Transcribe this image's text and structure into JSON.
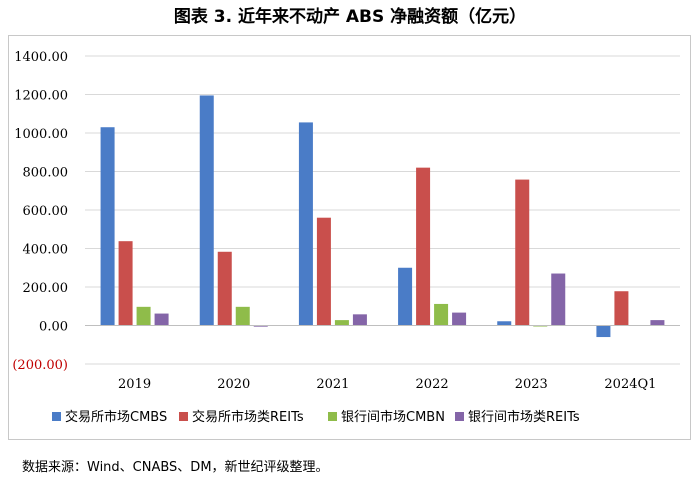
{
  "figure_title": "图表 3.  近年来不动产 ABS 净融资额（亿元）",
  "source_note": "数据来源：Wind、CNABS、DM，新世纪评级整理。",
  "chart_data": {
    "type": "bar",
    "title": "近年来不动产 ABS 净融资额（亿元）",
    "xlabel": "",
    "ylabel": "",
    "categories": [
      "2019",
      "2020",
      "2021",
      "2022",
      "2023",
      "2024Q1"
    ],
    "ylim": [
      -200,
      1400
    ],
    "yticks": [
      -200,
      0,
      200,
      400,
      600,
      800,
      1000,
      1200,
      1400
    ],
    "ytick_labels": [
      "(200.00)",
      "0.00",
      "200.00",
      "400.00",
      "600.00",
      "800.00",
      "1000.00",
      "1200.00",
      "1400.00"
    ],
    "negative_tick_color": "#c00000",
    "grid": true,
    "legend_position": "bottom",
    "series": [
      {
        "name": "交易所市场CMBS",
        "color": "#4a7cc7",
        "values": [
          1030,
          1195,
          1055,
          300,
          22,
          -60
        ]
      },
      {
        "name": "交易所市场类REITs",
        "color": "#c94f4c",
        "values": [
          438,
          383,
          560,
          820,
          758,
          178
        ]
      },
      {
        "name": "银行间市场CMBN",
        "color": "#8fbc4a",
        "values": [
          97,
          97,
          28,
          112,
          -5,
          0
        ]
      },
      {
        "name": "银行间市场类REITs",
        "color": "#8465a8",
        "values": [
          62,
          -6,
          58,
          67,
          270,
          28
        ]
      }
    ]
  }
}
